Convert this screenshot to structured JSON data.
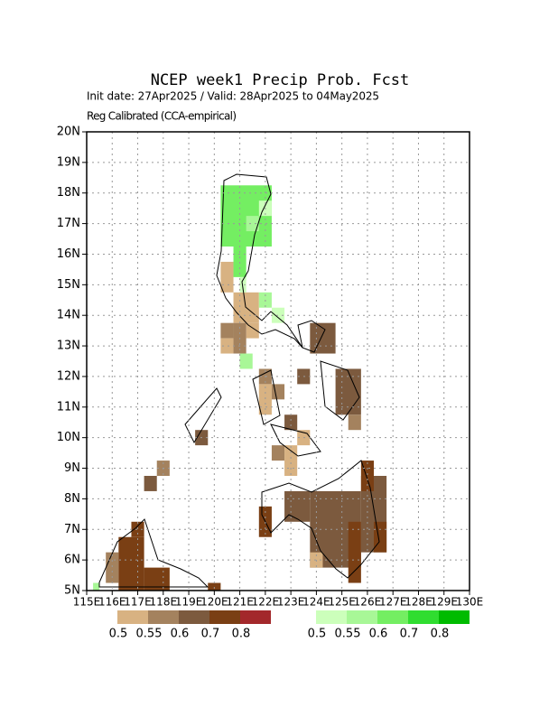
{
  "chart_data": {
    "type": "gridmap",
    "title": "NCEP week1 Precip Prob. Fcst",
    "subtitle": "Init date: 27Apr2025 / Valid: 28Apr2025 to 04May2025",
    "note": "Reg Calibrated (CCA-empirical)",
    "xlim": [
      115,
      130
    ],
    "ylim": [
      5,
      20
    ],
    "xticks": [
      {
        "value": 115,
        "label": "115E"
      },
      {
        "value": 116,
        "label": "116E"
      },
      {
        "value": 117,
        "label": "117E"
      },
      {
        "value": 118,
        "label": "118E"
      },
      {
        "value": 119,
        "label": "119E"
      },
      {
        "value": 120,
        "label": "120E"
      },
      {
        "value": 121,
        "label": "121E"
      },
      {
        "value": 122,
        "label": "122E"
      },
      {
        "value": 123,
        "label": "123E"
      },
      {
        "value": 124,
        "label": "124E"
      },
      {
        "value": 125,
        "label": "125E"
      },
      {
        "value": 126,
        "label": "126E"
      },
      {
        "value": 127,
        "label": "127E"
      },
      {
        "value": 128,
        "label": "128E"
      },
      {
        "value": 129,
        "label": "129E"
      },
      {
        "value": 130,
        "label": "130E"
      }
    ],
    "yticks": [
      {
        "value": 5,
        "label": "5N"
      },
      {
        "value": 6,
        "label": "6N"
      },
      {
        "value": 7,
        "label": "7N"
      },
      {
        "value": 8,
        "label": "8N"
      },
      {
        "value": 9,
        "label": "9N"
      },
      {
        "value": 10,
        "label": "10N"
      },
      {
        "value": 11,
        "label": "11N"
      },
      {
        "value": 12,
        "label": "12N"
      },
      {
        "value": 13,
        "label": "13N"
      },
      {
        "value": 14,
        "label": "14N"
      },
      {
        "value": 15,
        "label": "15N"
      },
      {
        "value": 16,
        "label": "16N"
      },
      {
        "value": 17,
        "label": "17N"
      },
      {
        "value": 18,
        "label": "18N"
      },
      {
        "value": 19,
        "label": "19N"
      },
      {
        "value": 20,
        "label": "20N"
      }
    ],
    "grid": true,
    "colorbars": [
      {
        "levels": [
          0.5,
          0.55,
          0.6,
          0.7,
          0.8
        ],
        "colors": [
          "#d8b282",
          "#a4825e",
          "#7c5a3e",
          "#7a3f14",
          "#a3282b"
        ]
      },
      {
        "levels": [
          0.5,
          0.55,
          0.6,
          0.7,
          0.8
        ],
        "colors": [
          "#ccffbb",
          "#a8f797",
          "#74ee62",
          "#30dd30",
          "#00bb00"
        ]
      }
    ],
    "layers": [
      {
        "cells": [
          [
            115.75,
            5.25,
            116.25,
            6.25,
            0.55
          ],
          [
            116.25,
            5.0,
            117.25,
            6.75,
            0.7
          ],
          [
            116.75,
            6.75,
            117.25,
            7.25,
            0.7
          ],
          [
            117.25,
            5.0,
            118.25,
            5.75,
            0.7
          ],
          [
            119.75,
            5.0,
            120.25,
            5.25,
            0.7
          ],
          [
            117.25,
            8.25,
            117.75,
            8.75,
            0.6
          ],
          [
            117.75,
            8.75,
            118.25,
            9.25,
            0.55
          ],
          [
            119.25,
            9.75,
            119.75,
            10.25,
            0.6
          ],
          [
            120.25,
            14.75,
            120.75,
            15.75,
            0.5
          ],
          [
            120.75,
            13.75,
            121.75,
            14.75,
            0.5
          ],
          [
            121.25,
            13.25,
            121.75,
            13.75,
            0.5
          ],
          [
            120.25,
            13.25,
            120.75,
            13.75,
            0.55
          ],
          [
            120.75,
            12.75,
            121.25,
            13.75,
            0.55
          ],
          [
            120.25,
            12.75,
            120.75,
            13.25,
            0.5
          ],
          [
            121.75,
            11.75,
            122.25,
            12.25,
            0.55
          ],
          [
            121.75,
            10.75,
            122.25,
            11.75,
            0.5
          ],
          [
            122.25,
            11.25,
            122.75,
            11.75,
            0.55
          ],
          [
            122.75,
            10.25,
            123.25,
            10.75,
            0.6
          ],
          [
            122.25,
            9.25,
            122.75,
            9.75,
            0.55
          ],
          [
            122.75,
            8.75,
            123.25,
            9.75,
            0.5
          ],
          [
            123.25,
            9.75,
            123.75,
            10.25,
            0.5
          ],
          [
            123.75,
            12.75,
            124.75,
            13.75,
            0.6
          ],
          [
            123.25,
            11.75,
            123.75,
            12.25,
            0.6
          ],
          [
            124.75,
            10.75,
            125.75,
            12.25,
            0.6
          ],
          [
            125.25,
            10.25,
            125.75,
            10.75,
            0.55
          ],
          [
            121.75,
            6.75,
            122.25,
            7.75,
            0.7
          ],
          [
            122.75,
            7.25,
            123.75,
            8.25,
            0.6
          ],
          [
            123.75,
            5.75,
            125.75,
            8.25,
            0.6
          ],
          [
            123.75,
            5.75,
            124.25,
            6.25,
            0.5
          ],
          [
            125.25,
            5.25,
            125.75,
            7.25,
            0.7
          ],
          [
            125.75,
            6.25,
            126.75,
            8.75,
            0.6
          ],
          [
            125.75,
            8.25,
            126.25,
            9.25,
            0.7
          ],
          [
            126.25,
            6.25,
            126.75,
            7.25,
            0.7
          ]
        ]
      },
      {
        "cells": [
          [
            120.25,
            16.25,
            122.25,
            18.25,
            0.6
          ],
          [
            121.25,
            16.75,
            121.75,
            17.25,
            0.55
          ],
          [
            121.75,
            17.25,
            122.25,
            17.75,
            0.5
          ],
          [
            120.75,
            15.25,
            121.25,
            16.25,
            0.6
          ],
          [
            121.0,
            14.75,
            121.25,
            15.25,
            0.5
          ],
          [
            121.75,
            14.25,
            122.25,
            14.75,
            0.55
          ],
          [
            122.25,
            13.75,
            122.75,
            14.25,
            0.5
          ],
          [
            121.0,
            12.25,
            121.5,
            12.75,
            0.55
          ],
          [
            115.25,
            5.0,
            115.5,
            5.25,
            0.55
          ]
        ]
      }
    ]
  }
}
